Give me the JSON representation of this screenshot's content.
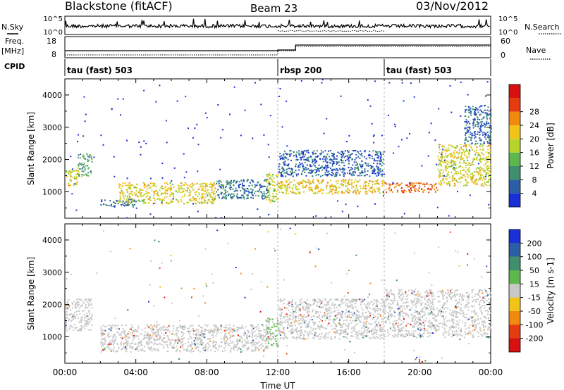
{
  "header": {
    "title": "Blackstone (fitACF)",
    "beam": "Beam 23",
    "date": "03/Nov/2012"
  },
  "aux_panels": {
    "nsky_label": "N.Sky",
    "nsearch_label": "N.Search",
    "noise_ticks_left": [
      "10^5",
      "10^0"
    ],
    "noise_ticks_right": [
      "10^5",
      "10^0"
    ],
    "freq_label": "Freq.",
    "freq_unit": "[MHz]",
    "freq_ticks": [
      "18",
      "8"
    ],
    "nave_label": "Nave",
    "nave_ticks": [
      "60",
      "0"
    ],
    "cpid_label": "CPID",
    "cpid_segments": [
      {
        "label": "tau (fast) 503",
        "start_hour": 0,
        "end_hour": 12
      },
      {
        "label": "rbsp 200",
        "start_hour": 12,
        "end_hour": 18
      },
      {
        "label": "tau (fast) 503",
        "start_hour": 18,
        "end_hour": 24
      }
    ]
  },
  "chart_data": [
    {
      "type": "heatmap",
      "panel": "power",
      "ylabel": "Slant Range [km]",
      "yticks": [
        1000,
        2000,
        3000,
        4000
      ],
      "ylim": [
        180,
        4500
      ],
      "xlim_hours": [
        0,
        24
      ],
      "colorbar_label": "Power [dB]",
      "colorbar_ticks": [
        "4",
        "8",
        "12",
        "16",
        "20",
        "24",
        "28"
      ],
      "colorbar_colors": [
        "#1a2fd6",
        "#2a5fa8",
        "#3f8f6f",
        "#5cb84a",
        "#b6d42a",
        "#f2c318",
        "#f08a10",
        "#e53b10",
        "#d81010"
      ],
      "features": [
        {
          "start_hour": 0.0,
          "end_hour": 0.7,
          "range_km": [
            1200,
            1700
          ],
          "power_db": 20
        },
        {
          "start_hour": 0.7,
          "end_hour": 1.5,
          "range_km": [
            1500,
            2200
          ],
          "power_db": 12
        },
        {
          "start_hour": 2.0,
          "end_hour": 4.0,
          "range_km": [
            550,
            800
          ],
          "power_db": 8
        },
        {
          "start_hour": 3.0,
          "end_hour": 8.5,
          "range_km": [
            650,
            1300
          ],
          "power_db": 20
        },
        {
          "start_hour": 8.5,
          "end_hour": 11.5,
          "range_km": [
            800,
            1400
          ],
          "power_db": 8
        },
        {
          "start_hour": 11.3,
          "end_hour": 12.0,
          "range_km": [
            700,
            1600
          ],
          "power_db": 18
        },
        {
          "start_hour": 12.0,
          "end_hour": 18.0,
          "range_km": [
            950,
            1400
          ],
          "power_db": 22
        },
        {
          "start_hour": 12.0,
          "end_hour": 18.0,
          "range_km": [
            1500,
            2300
          ],
          "power_db": 6
        },
        {
          "start_hour": 18.0,
          "end_hour": 21.0,
          "range_km": [
            1000,
            1300
          ],
          "power_db": 28
        },
        {
          "start_hour": 21.0,
          "end_hour": 24.0,
          "range_km": [
            1200,
            2500
          ],
          "power_db": 20
        },
        {
          "start_hour": 22.5,
          "end_hour": 24.0,
          "range_km": [
            2500,
            3700
          ],
          "power_db": 6
        }
      ]
    },
    {
      "type": "heatmap",
      "panel": "velocity",
      "ylabel": "Slant Range [km]",
      "yticks": [
        1000,
        2000,
        3000,
        4000
      ],
      "ylim": [
        180,
        4500
      ],
      "xlim_hours": [
        0,
        24
      ],
      "colorbar_label": "Velocity [m s-1]",
      "colorbar_ticks": [
        "200",
        "100",
        "50",
        "15",
        "-15",
        "-50",
        "-100",
        "-200"
      ],
      "colorbar_colors": [
        "#1a2fd6",
        "#2a5fa8",
        "#3f8f6f",
        "#5cb84a",
        "#c8c8c8",
        "#f2c318",
        "#f08a10",
        "#e53b10",
        "#d81010"
      ],
      "features": [
        {
          "start_hour": 0.0,
          "end_hour": 1.5,
          "range_km": [
            1200,
            2200
          ],
          "velocity_ms": 0
        },
        {
          "start_hour": 2.0,
          "end_hour": 11.5,
          "range_km": [
            550,
            1400
          ],
          "velocity_ms": 0
        },
        {
          "start_hour": 11.3,
          "end_hour": 12.0,
          "range_km": [
            700,
            1600
          ],
          "velocity_ms": 30
        },
        {
          "start_hour": 12.0,
          "end_hour": 18.0,
          "range_km": [
            950,
            2200
          ],
          "velocity_ms": 0
        },
        {
          "start_hour": 18.0,
          "end_hour": 24.0,
          "range_km": [
            1000,
            2500
          ],
          "velocity_ms": 0
        }
      ]
    }
  ],
  "x_axis": {
    "title": "Time UT",
    "ticks": [
      "00:00",
      "04:00",
      "08:00",
      "12:00",
      "16:00",
      "20:00",
      "00:00"
    ]
  }
}
